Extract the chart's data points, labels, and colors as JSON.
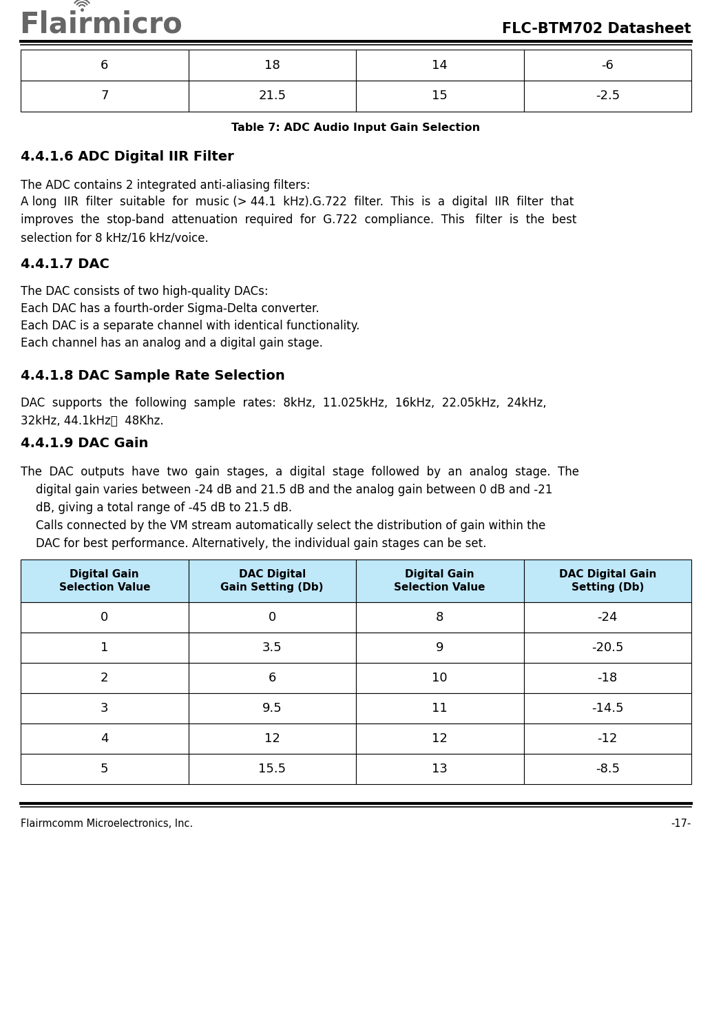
{
  "header_title": "FLC-BTM702 Datasheet",
  "footer_left": "Flairmcomm Microelectronics, Inc.",
  "footer_right": "-17-",
  "top_table_rows": [
    [
      "6",
      "18",
      "14",
      "-6"
    ],
    [
      "7",
      "21.5",
      "15",
      "-2.5"
    ]
  ],
  "table7_caption": "Table 7: ADC Audio Input Gain Selection",
  "section_416_title": "4.4.1.6 ADC Digital IIR Filter",
  "section_417_title": "4.4.1.7 DAC",
  "section_418_title": "4.4.1.8 DAC Sample Rate Selection",
  "section_419_title": "4.4.1.9 DAC Gain",
  "dac_table_headers": [
    "Digital Gain\nSelection Value",
    "DAC Digital\nGain Setting (Db)",
    "Digital Gain\nSelection Value",
    "DAC Digital Gain\nSetting (Db)"
  ],
  "dac_table_rows": [
    [
      "0",
      "0",
      "8",
      "-24"
    ],
    [
      "1",
      "3.5",
      "9",
      "-20.5"
    ],
    [
      "2",
      "6",
      "10",
      "-18"
    ],
    [
      "3",
      "9.5",
      "11",
      "-14.5"
    ],
    [
      "4",
      "12",
      "12",
      "-12"
    ],
    [
      "5",
      "15.5",
      "13",
      "-8.5"
    ]
  ],
  "bg_color": "#ffffff",
  "text_color": "#000000",
  "table_header_bg": "#bfe8f9",
  "separator_color": "#000000"
}
